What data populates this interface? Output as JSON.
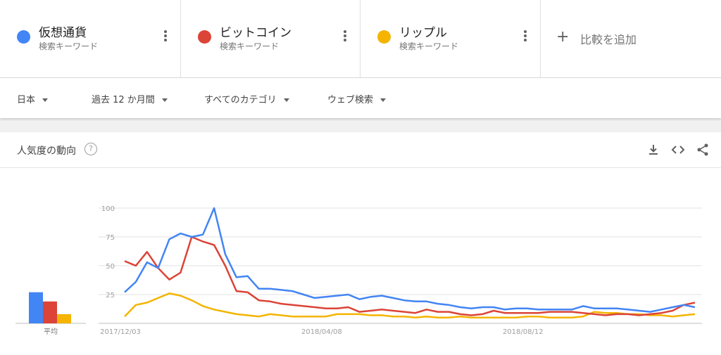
{
  "terms": [
    {
      "name": "仮想通貨",
      "subtitle": "検索キーワード",
      "color": "#4285f4"
    },
    {
      "name": "ビットコイン",
      "subtitle": "検索キーワード",
      "color": "#db4437"
    },
    {
      "name": "リップル",
      "subtitle": "検索キーワード",
      "color": "#f4b400"
    }
  ],
  "add_compare": {
    "plus": "+",
    "label": "比較を追加"
  },
  "filters": [
    "日本",
    "過去 12 か月間",
    "すべてのカテゴリ",
    "ウェブ検索"
  ],
  "card": {
    "title": "人気度の動向",
    "help_glyph": "?",
    "icons": [
      "download-icon",
      "embed-icon",
      "share-icon"
    ]
  },
  "chart_data": {
    "type": "line",
    "x_tick_labels": [
      "2017/12/03",
      "2018/04/08",
      "2018/08/12"
    ],
    "y_tick_labels": [
      "25",
      "50",
      "75",
      "100"
    ],
    "ylim": [
      0,
      100
    ],
    "grid": true,
    "series": [
      {
        "name": "仮想通貨",
        "color": "#4285f4",
        "values": [
          27,
          36,
          53,
          48,
          73,
          78,
          75,
          77,
          100,
          60,
          40,
          41,
          30,
          30,
          29,
          28,
          25,
          22,
          23,
          24,
          25,
          21,
          23,
          24,
          22,
          20,
          19,
          19,
          17,
          16,
          14,
          13,
          14,
          14,
          12,
          13,
          13,
          12,
          12,
          12,
          12,
          15,
          13,
          13,
          13,
          12,
          11,
          10,
          12,
          14,
          16,
          14
        ]
      },
      {
        "name": "ビットコイン",
        "color": "#db4437",
        "values": [
          54,
          50,
          62,
          48,
          38,
          44,
          75,
          71,
          68,
          50,
          28,
          27,
          20,
          19,
          17,
          16,
          15,
          14,
          13,
          13,
          14,
          10,
          11,
          12,
          11,
          10,
          9,
          12,
          10,
          10,
          8,
          7,
          8,
          11,
          9,
          9,
          9,
          9,
          10,
          10,
          10,
          9,
          8,
          7,
          8,
          8,
          7,
          8,
          9,
          11,
          16,
          18
        ]
      },
      {
        "name": "リップル",
        "color": "#f4b400",
        "values": [
          6,
          16,
          18,
          22,
          26,
          24,
          20,
          15,
          12,
          10,
          8,
          7,
          6,
          8,
          7,
          6,
          6,
          6,
          6,
          8,
          8,
          8,
          7,
          7,
          6,
          6,
          5,
          6,
          5,
          5,
          6,
          5,
          5,
          5,
          5,
          5,
          6,
          6,
          5,
          5,
          5,
          6,
          10,
          9,
          9,
          8,
          8,
          7,
          7,
          6,
          7,
          8
        ]
      }
    ],
    "average_bars": {
      "label": "平均",
      "values": [
        27,
        19,
        8
      ]
    }
  }
}
